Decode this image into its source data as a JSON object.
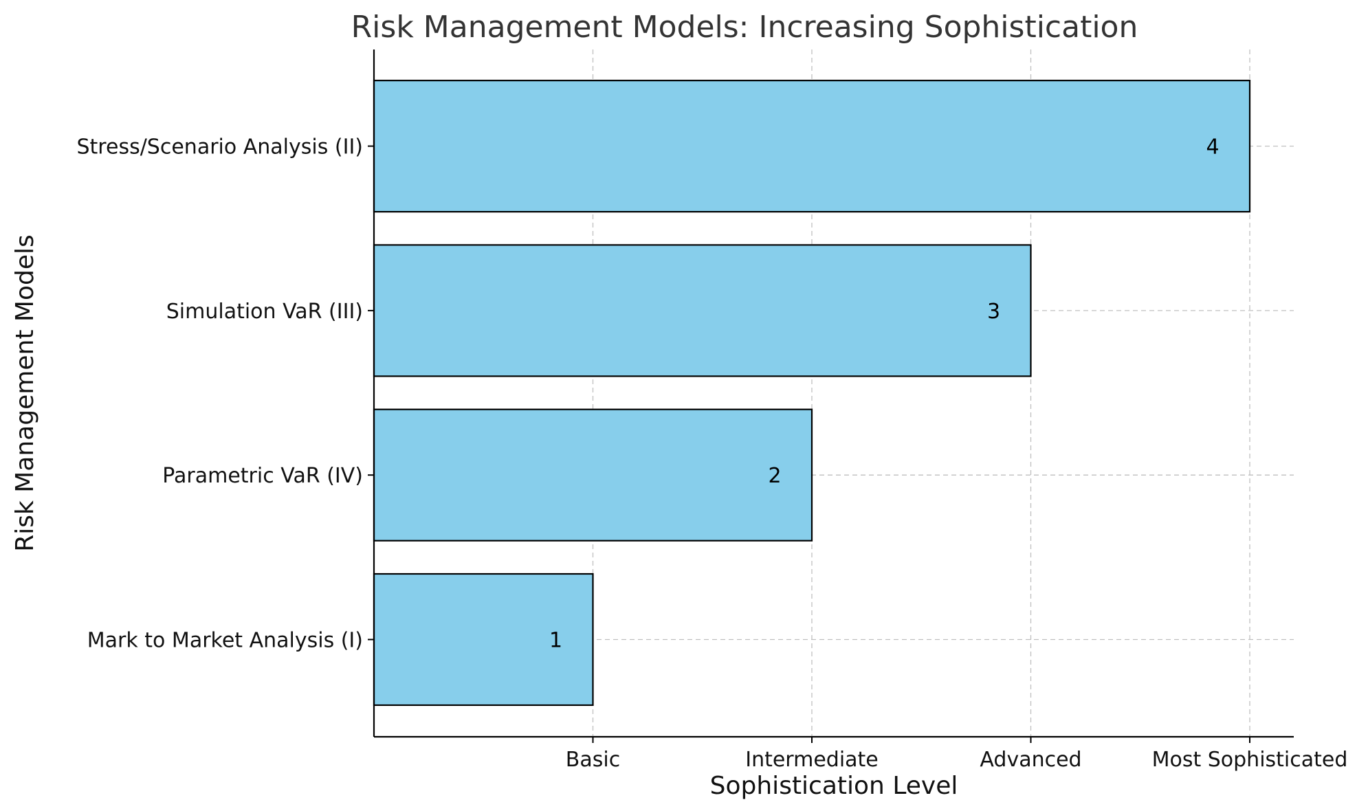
{
  "chart_data": {
    "type": "bar",
    "orientation": "horizontal",
    "title": "Risk Management Models: Increasing Sophistication",
    "xlabel": "Sophistication Level",
    "ylabel": "Risk Management Models",
    "categories": [
      "Mark to Market Analysis (I)",
      "Parametric VaR (IV)",
      "Simulation VaR (III)",
      "Stress/Scenario Analysis (II)"
    ],
    "values": [
      1,
      2,
      3,
      4
    ],
    "value_labels": [
      "1",
      "2",
      "3",
      "4"
    ],
    "xticks": [
      {
        "value": 1,
        "label": "Basic"
      },
      {
        "value": 2,
        "label": "Intermediate"
      },
      {
        "value": 3,
        "label": "Advanced"
      },
      {
        "value": 4,
        "label": "Most Sophisticated"
      }
    ],
    "xlim": [
      0,
      4.2
    ],
    "grid": true,
    "bar_color": "#87CEEB",
    "edge_color": "#000000"
  }
}
